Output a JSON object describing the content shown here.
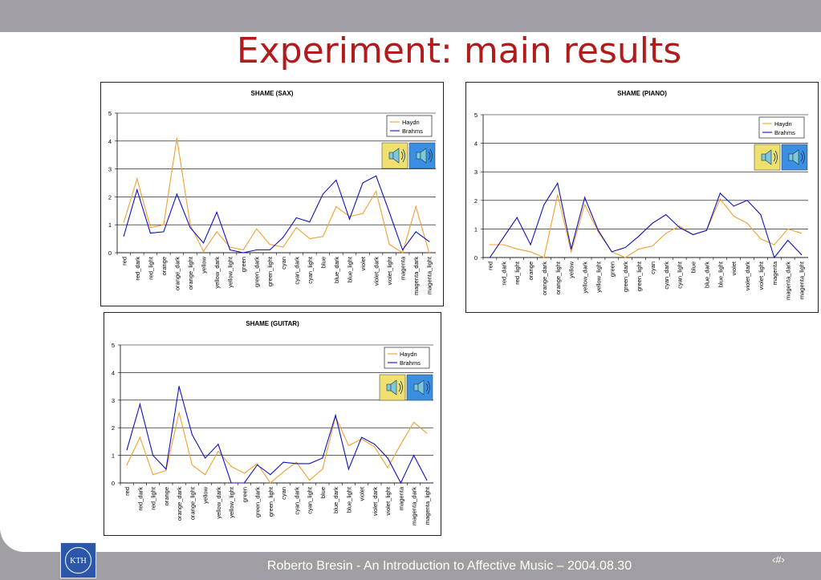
{
  "slide": {
    "title": "Experiment: main results",
    "footer": "Roberto Bresin - An Introduction to Affective Music – 2004.08.30",
    "page_number": "‹#›",
    "logo_text": "KTH"
  },
  "chart_data": [
    {
      "type": "line",
      "title": "SHAME (SAX)",
      "categories": [
        "red",
        "red_dark",
        "red_light",
        "orange",
        "orange_dark",
        "orange_light",
        "yellow",
        "yellow_dark",
        "yellow_light",
        "green",
        "green_dark",
        "green_light",
        "cyan",
        "cyan_dark",
        "cyan_light",
        "blue",
        "blue_dark",
        "blue_light",
        "violet",
        "violet_dark",
        "violet_light",
        "magenta",
        "magenta_dark",
        "magenta_light"
      ],
      "series": [
        {
          "name": "Haydn",
          "color": "#f0a030",
          "values": [
            1.1,
            2.65,
            0.9,
            1.0,
            4.1,
            1.0,
            0.05,
            0.75,
            0.2,
            0.1,
            0.85,
            0.3,
            0.2,
            0.9,
            0.5,
            0.58,
            1.65,
            1.3,
            1.4,
            2.2,
            0.3,
            0.0,
            1.65,
            0.0
          ]
        },
        {
          "name": "Brahms",
          "color": "#1010c0",
          "values": [
            0.6,
            2.25,
            0.7,
            0.75,
            2.1,
            0.9,
            0.35,
            1.45,
            0.1,
            0.0,
            0.1,
            0.1,
            0.55,
            1.25,
            1.1,
            2.1,
            2.6,
            1.2,
            2.5,
            2.75,
            1.45,
            0.1,
            0.75,
            0.4
          ]
        }
      ],
      "ylim": [
        0,
        5
      ],
      "yticks": [
        0,
        1,
        2,
        3,
        4,
        5
      ],
      "legend": "top-right",
      "grid": true
    },
    {
      "type": "line",
      "title": "SHAME (PIANO)",
      "categories": [
        "red",
        "red_dark",
        "red_light",
        "orange",
        "orange_dark",
        "orange_light",
        "yellow",
        "yellow_dark",
        "yellow_light",
        "green",
        "green_dark",
        "green_light",
        "cyan",
        "cyan_dark",
        "cyan_light",
        "blue",
        "blue_dark",
        "blue_light",
        "violet",
        "violet_dark",
        "violet_light",
        "magenta",
        "magenta_dark",
        "magenta_light"
      ],
      "series": [
        {
          "name": "Haydn",
          "color": "#f0a030",
          "values": [
            0.45,
            0.45,
            0.3,
            0.2,
            0.0,
            2.2,
            0.2,
            1.85,
            0.9,
            0.2,
            0.0,
            0.3,
            0.4,
            0.85,
            1.1,
            0.8,
            0.95,
            2.05,
            1.45,
            1.2,
            0.65,
            0.45,
            1.0,
            0.85
          ]
        },
        {
          "name": "Brahms",
          "color": "#1010c0",
          "values": [
            0.0,
            0.7,
            1.4,
            0.45,
            1.85,
            2.6,
            0.3,
            2.1,
            0.95,
            0.2,
            0.35,
            0.75,
            1.2,
            1.5,
            1.05,
            0.8,
            0.95,
            2.25,
            1.8,
            2.0,
            1.5,
            0.0,
            0.6,
            0.1
          ]
        }
      ],
      "ylim": [
        0,
        5
      ],
      "yticks": [
        0,
        1,
        2,
        3,
        4,
        5
      ],
      "legend": "top-right",
      "grid": true
    },
    {
      "type": "line",
      "title": "SHAME (GUITAR)",
      "categories": [
        "red",
        "red_dark",
        "red_light",
        "orange",
        "orange_dark",
        "orange_light",
        "yellow",
        "yellow_dark",
        "yellow_light",
        "green",
        "green_dark",
        "green_light",
        "cyan",
        "cyan_dark",
        "cyan_light",
        "blue",
        "blue_dark",
        "blue_light",
        "violet",
        "violet_dark",
        "violet_light",
        "magenta",
        "magenta_dark",
        "magenta_light"
      ],
      "series": [
        {
          "name": "Haydn",
          "color": "#f0a030",
          "values": [
            0.65,
            1.65,
            0.3,
            0.45,
            2.55,
            0.65,
            0.3,
            1.15,
            0.6,
            0.35,
            0.7,
            0.0,
            0.4,
            0.75,
            0.1,
            0.5,
            2.4,
            1.35,
            1.6,
            1.3,
            0.55,
            1.4,
            2.2,
            1.8
          ]
        },
        {
          "name": "Brahms",
          "color": "#1010c0",
          "values": [
            1.2,
            2.85,
            1.0,
            0.5,
            3.5,
            1.75,
            0.9,
            1.4,
            0.0,
            0.0,
            0.65,
            0.3,
            0.75,
            0.7,
            0.7,
            0.9,
            2.45,
            0.5,
            1.65,
            1.4,
            0.9,
            0.0,
            1.0,
            0.1
          ]
        }
      ],
      "ylim": [
        0,
        5
      ],
      "yticks": [
        0,
        1,
        2,
        3,
        4,
        5
      ],
      "legend": "top-right",
      "grid": true
    }
  ]
}
